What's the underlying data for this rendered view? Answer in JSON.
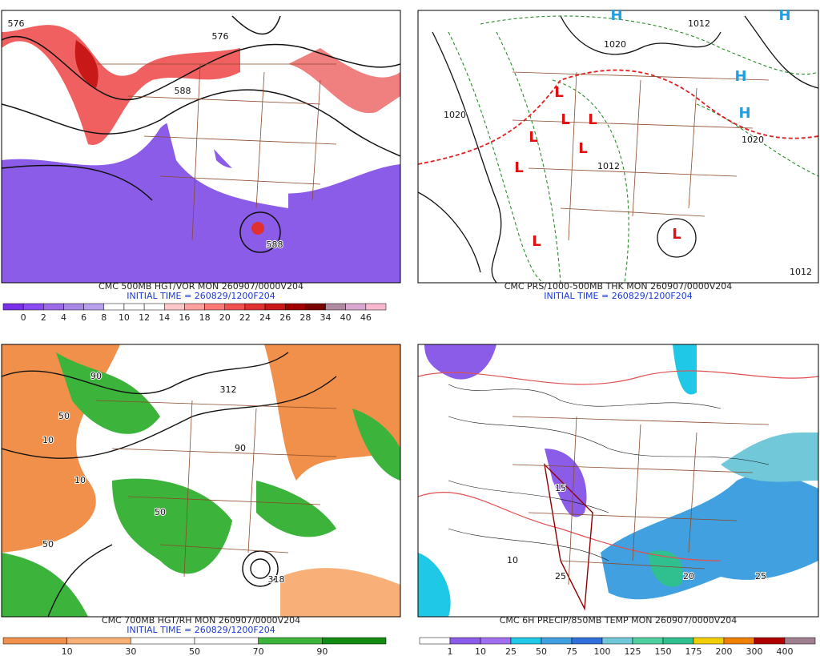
{
  "panels": [
    {
      "title": "CMC 500MB HGT/VOR MON 260907/0000V204",
      "initial": "INITIAL TIME = 260829/1200F204",
      "contour_labels": [
        "576",
        "576",
        "588",
        "588"
      ],
      "legend": {
        "labels": [
          "0",
          "2",
          "4",
          "6",
          "8",
          "10",
          "12",
          "14",
          "16",
          "18",
          "20",
          "22",
          "24",
          "26",
          "28",
          "34",
          "40",
          "46"
        ],
        "colors": [
          "#7a30e8",
          "#8a4cf0",
          "#9a6ae8",
          "#a888e6",
          "#b8a0ee",
          "#ffffff",
          "#ffffff",
          "#ffffff",
          "#ffc8c8",
          "#ffa0a0",
          "#ff7878",
          "#f05050",
          "#e03030",
          "#c81818",
          "#a00000",
          "#780000",
          "#b08aa0",
          "#d8a8d0",
          "#f8b8d0"
        ]
      }
    },
    {
      "title": "CMC PRS/1000-500MB THK MON 260907/0000V204",
      "initial": "INITIAL TIME = 260829/1200F204",
      "contour_labels": [
        "1020",
        "1012",
        "1020",
        "1012",
        "1020",
        "1012"
      ],
      "symbols": [
        "L",
        "L",
        "L",
        "L",
        "L",
        "L",
        "L",
        "L",
        "H",
        "H",
        "H",
        "H"
      ]
    },
    {
      "title": "CMC 700MB HGT/RH MON 260907/0000V204",
      "initial": "INITIAL TIME = 260829/1200F204",
      "contour_labels": [
        "50",
        "50",
        "50",
        "90",
        "90",
        "10",
        "10",
        "312",
        "318"
      ],
      "legend": {
        "labels": [
          "10",
          "30",
          "50",
          "70",
          "90"
        ],
        "colors": [
          "#f0904a",
          "#f8b078",
          "#ffffff",
          "#ffffff",
          "#3cb43c",
          "#128c12"
        ]
      }
    },
    {
      "title": "CMC 6H PRECIP/850MB TEMP MON 260907/0000V204",
      "contour_labels": [
        "10",
        "15",
        "20",
        "25",
        "25"
      ],
      "legend": {
        "labels": [
          "1",
          "10",
          "25",
          "50",
          "75",
          "100",
          "125",
          "150",
          "175",
          "200",
          "300",
          "400"
        ],
        "colors": [
          "#ffffff",
          "#8a5ce8",
          "#a070f0",
          "#20c8e8",
          "#40a0e0",
          "#3070d8",
          "#70c8d8",
          "#50d0a0",
          "#30c090",
          "#f0d000",
          "#f08000",
          "#b00000",
          "#a08090"
        ]
      }
    }
  ]
}
